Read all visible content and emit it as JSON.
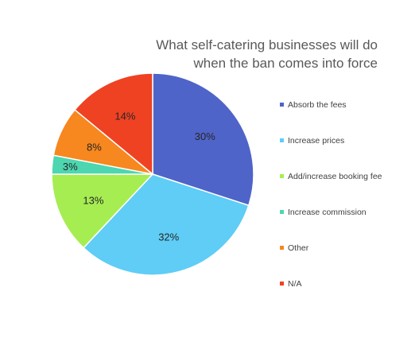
{
  "chart_data": {
    "type": "pie",
    "title_lines": [
      "What self-catering businesses will do",
      "when the ban comes into force"
    ],
    "categories": [
      "Absorb the fees",
      "Increase prices",
      "Add/increase booking fee",
      "Increase commission",
      "Other",
      "N/A"
    ],
    "values": [
      30,
      32,
      13,
      3,
      8,
      14
    ],
    "labels": [
      "30%",
      "32%",
      "13%",
      "3%",
      "8%",
      "14%"
    ],
    "colors": [
      "#4f64c8",
      "#5fcdf5",
      "#a6ed52",
      "#4dd6b0",
      "#f7871f",
      "#ef4223"
    ],
    "legend_position": "right"
  }
}
